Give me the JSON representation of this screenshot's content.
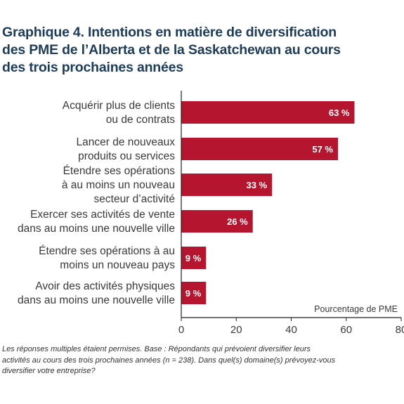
{
  "title_lines": [
    "Graphique 4. Intentions en matière de diversification",
    "des PME de l’Alberta et de la Saskatchewan au cours",
    "des trois prochaines années"
  ],
  "footnote_lines": [
    "Les réponses multiples étaient permises. Base : Répondants qui prévoient diversifier leurs",
    "activités au cours des trois prochaines années (n = 238). Dans quel(s) domaine(s) prévoyez-vous",
    "diversifier votre entreprise?"
  ],
  "colors": {
    "bar": "#b5152e",
    "title": "#1d3c5a",
    "text": "#3a3a3a",
    "axis": "#222222",
    "label": "#ffffff"
  },
  "chart_data": {
    "type": "bar",
    "orientation": "horizontal",
    "categories": [
      [
        "Acquérir plus de clients",
        "ou de contrats"
      ],
      [
        "Lancer de nouveaux",
        "produits ou services"
      ],
      [
        "Étendre ses opérations",
        "à au moins un nouveau",
        "secteur d’activité"
      ],
      [
        "Exercer ses activités de vente",
        "dans au moins une nouvelle ville"
      ],
      [
        "Étendre ses opérations à au",
        "moins un nouveau pays"
      ],
      [
        "Avoir des activités physiques",
        "dans au moins une nouvelle ville"
      ]
    ],
    "values": [
      63,
      57,
      33,
      26,
      9,
      9
    ],
    "data_labels": [
      "63 %",
      "57 %",
      "33 %",
      "26 %",
      "9 %",
      "9 %"
    ],
    "xlabel": "Pourcentage de PME",
    "xlim": [
      0,
      80
    ],
    "xticks": [
      "0",
      "20",
      "40",
      "60",
      "80"
    ],
    "grid": false,
    "legend": "none"
  }
}
